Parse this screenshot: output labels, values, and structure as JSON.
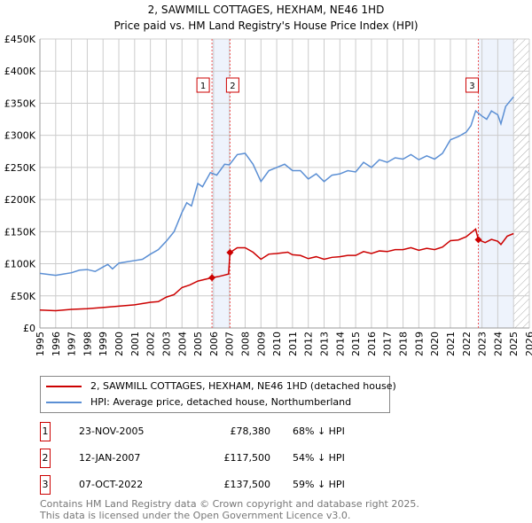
{
  "chart_data": {
    "type": "line",
    "title": "2, SAWMILL COTTAGES, HEXHAM, NE46 1HD",
    "subtitle": "Price paid vs. HM Land Registry's House Price Index (HPI)",
    "xlim": [
      1995,
      2026
    ],
    "ylim": [
      0,
      450000
    ],
    "yticks": [
      0,
      50000,
      100000,
      150000,
      200000,
      250000,
      300000,
      350000,
      400000,
      450000
    ],
    "ytick_labels": [
      "£0",
      "£50K",
      "£100K",
      "£150K",
      "£200K",
      "£250K",
      "£300K",
      "£350K",
      "£400K",
      "£450K"
    ],
    "xticks": [
      1995,
      1996,
      1997,
      1998,
      1999,
      2000,
      2001,
      2002,
      2003,
      2004,
      2005,
      2006,
      2007,
      2008,
      2009,
      2010,
      2011,
      2012,
      2013,
      2014,
      2015,
      2016,
      2017,
      2018,
      2019,
      2020,
      2021,
      2022,
      2023,
      2024,
      2025,
      2026
    ],
    "grid": true,
    "shaded_ranges": [
      [
        2005.9,
        2007.04
      ],
      [
        2022.77,
        2025.0
      ]
    ],
    "hatched_after": 2025.0,
    "series": [
      {
        "name": "HPI: Average price, detached house, Northumberland",
        "color": "#5b8fd4",
        "x": [
          1995,
          1996,
          1996.5,
          1997,
          1997.5,
          1998,
          1998.5,
          1999,
          1999.3,
          1999.6,
          2000,
          2000.5,
          2001,
          2001.5,
          2002,
          2002.5,
          2003,
          2003.5,
          2004,
          2004.3,
          2004.6,
          2005,
          2005.3,
          2005.8,
          2006.2,
          2006.7,
          2007,
          2007.5,
          2008,
          2008.5,
          2009,
          2009.5,
          2010,
          2010.5,
          2011,
          2011.5,
          2012,
          2012.5,
          2013,
          2013.5,
          2014,
          2014.5,
          2015,
          2015.5,
          2016,
          2016.5,
          2017,
          2017.5,
          2018,
          2018.5,
          2019,
          2019.5,
          2020,
          2020.5,
          2021,
          2021.5,
          2022,
          2022.3,
          2022.6,
          2023,
          2023.3,
          2023.6,
          2024,
          2024.2,
          2024.5,
          2025
        ],
        "y": [
          85000,
          82000,
          84000,
          86000,
          90000,
          91000,
          88000,
          95000,
          99000,
          92000,
          101000,
          103000,
          105000,
          107000,
          115000,
          122000,
          135000,
          150000,
          180000,
          195000,
          190000,
          225000,
          220000,
          242000,
          238000,
          255000,
          254000,
          270000,
          272000,
          255000,
          228000,
          245000,
          250000,
          255000,
          245000,
          245000,
          232000,
          240000,
          228000,
          238000,
          240000,
          245000,
          243000,
          258000,
          250000,
          262000,
          258000,
          265000,
          263000,
          270000,
          262000,
          268000,
          263000,
          272000,
          293000,
          298000,
          305000,
          315000,
          338000,
          330000,
          325000,
          338000,
          332000,
          318000,
          345000,
          360000
        ]
      },
      {
        "name": "2, SAWMILL COTTAGES, HEXHAM, NE46 1HD (detached house)",
        "color": "#cc0000",
        "x": [
          1995,
          1996,
          1997,
          1998,
          1999,
          2000,
          2001,
          2002,
          2002.5,
          2003,
          2003.5,
          2004,
          2004.5,
          2005,
          2005.9,
          2006.3,
          2006.95,
          2007.04,
          2007.5,
          2008,
          2008.5,
          2009,
          2009.5,
          2010,
          2010.7,
          2011,
          2011.5,
          2012,
          2012.5,
          2013,
          2013.5,
          2014,
          2014.5,
          2015,
          2015.5,
          2016,
          2016.5,
          2017,
          2017.5,
          2018,
          2018.5,
          2019,
          2019.5,
          2020,
          2020.5,
          2021,
          2021.5,
          2022,
          2022.6,
          2022.77,
          2023.2,
          2023.6,
          2024,
          2024.2,
          2024.6,
          2025
        ],
        "y": [
          28000,
          27000,
          29000,
          30000,
          32000,
          34000,
          36000,
          40000,
          41000,
          48000,
          52000,
          63000,
          67000,
          73000,
          78380,
          80000,
          84000,
          117500,
          125000,
          125000,
          118000,
          107000,
          115000,
          116000,
          118000,
          114000,
          113000,
          108000,
          111000,
          107000,
          110000,
          111000,
          113000,
          113000,
          119000,
          116000,
          120000,
          119000,
          122000,
          122000,
          125000,
          121000,
          124000,
          122000,
          126000,
          136000,
          137000,
          142000,
          154000,
          137500,
          133000,
          138000,
          135000,
          130000,
          143000,
          147000
        ]
      }
    ],
    "sales": [
      {
        "id": "1",
        "x": 2005.9,
        "y": 78380,
        "date": "23-NOV-2005",
        "price": "£78,380",
        "hpi": "68% ↓ HPI"
      },
      {
        "id": "2",
        "x": 2007.04,
        "y": 117500,
        "date": "12-JAN-2007",
        "price": "£117,500",
        "hpi": "54% ↓ HPI"
      },
      {
        "id": "3",
        "x": 2022.77,
        "y": 137500,
        "date": "07-OCT-2022",
        "price": "£137,500",
        "hpi": "59% ↓ HPI"
      }
    ]
  },
  "legend": {
    "red": "2, SAWMILL COTTAGES, HEXHAM, NE46 1HD (detached house)",
    "blue": "HPI: Average price, detached house, Northumberland"
  },
  "footer": [
    "Contains HM Land Registry data © Crown copyright and database right 2025.",
    "This data is licensed under the Open Government Licence v3.0."
  ]
}
